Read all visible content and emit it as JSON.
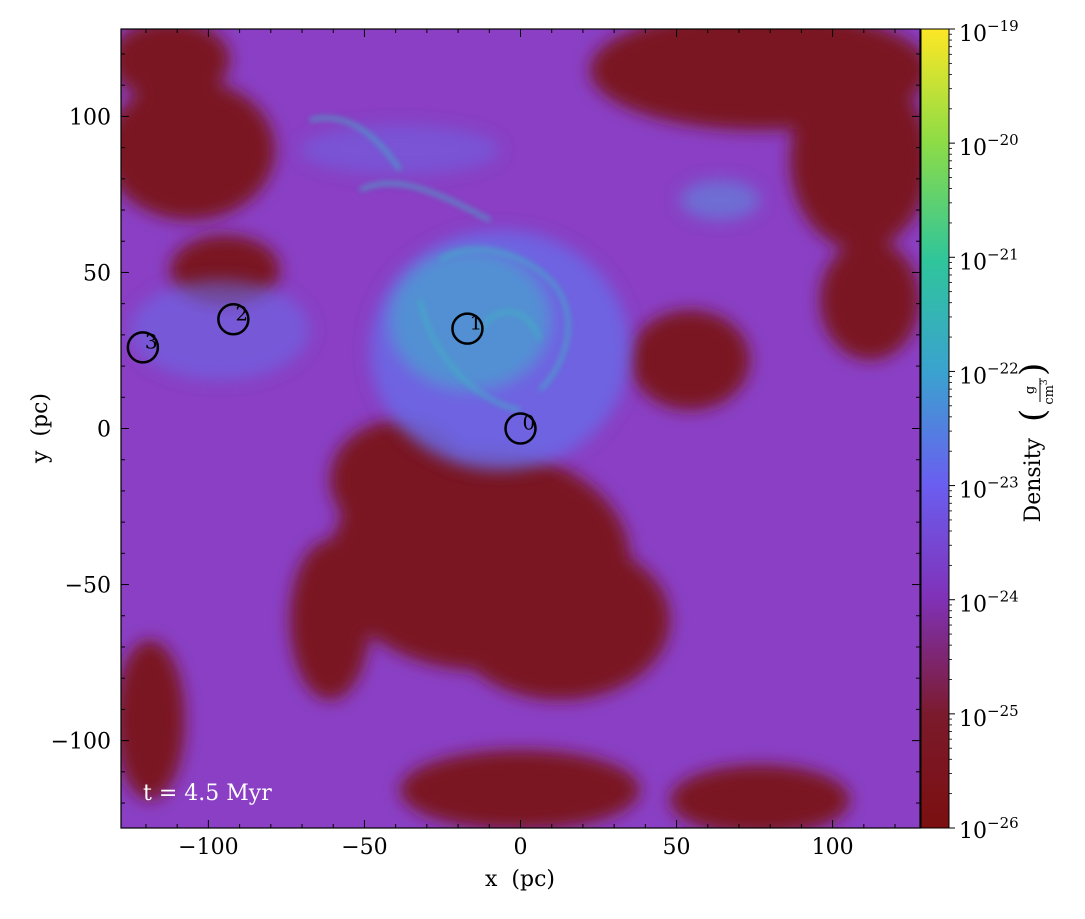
{
  "chart_data": {
    "type": "heatmap",
    "title": "",
    "xlabel": "x  (pc)",
    "ylabel": "y  (pc)",
    "xlim": [
      -128,
      128
    ],
    "ylim": [
      -128,
      128
    ],
    "x_ticks": [
      -100,
      -50,
      0,
      50,
      100
    ],
    "y_ticks": [
      -100,
      -50,
      0,
      50,
      100
    ],
    "x_tick_labels": [
      "−100",
      "−50",
      "0",
      "50",
      "100"
    ],
    "y_tick_labels": [
      "−100",
      "−50",
      "0",
      "50",
      "100"
    ],
    "grid": false,
    "annotation": "t = 4.5 Myr",
    "markers": [
      {
        "label": "0",
        "x": 0,
        "y": 0
      },
      {
        "label": "1",
        "x": -17,
        "y": 32
      },
      {
        "label": "2",
        "x": -92,
        "y": 35
      },
      {
        "label": "3",
        "x": -121,
        "y": 26
      }
    ],
    "colorbar": {
      "label": "Density",
      "unit_numerator": "g",
      "unit_denominator": "cm",
      "unit_denominator_exponent": "3",
      "scale": "log",
      "range_exponents": [
        -26,
        -19
      ],
      "tick_exponents": [
        -26,
        -25,
        -24,
        -23,
        -22,
        -21,
        -20,
        -19
      ],
      "tick_base": "10",
      "colormap": [
        "#7b0f10",
        "#6b3fc9",
        "#6a62ea",
        "#3aa8c6",
        "#2fc59b",
        "#6fd74f",
        "#c3e43a",
        "#fde725"
      ]
    }
  }
}
